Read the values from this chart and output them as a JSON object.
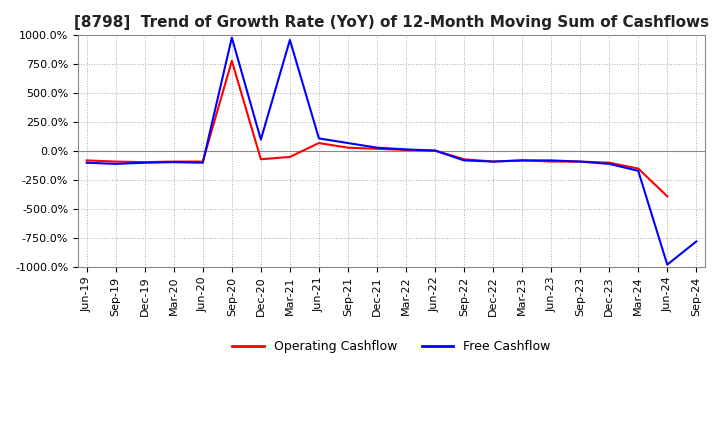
{
  "title": "[8798]  Trend of Growth Rate (YoY) of 12-Month Moving Sum of Cashflows",
  "ylim": [
    -1000,
    1000
  ],
  "yticks": [
    1000.0,
    750.0,
    500.0,
    250.0,
    0.0,
    -250.0,
    -500.0,
    -750.0,
    -1000.0
  ],
  "x_labels": [
    "Jun-19",
    "Sep-19",
    "Dec-19",
    "Mar-20",
    "Jun-20",
    "Sep-20",
    "Dec-20",
    "Mar-21",
    "Jun-21",
    "Sep-21",
    "Dec-21",
    "Mar-22",
    "Jun-22",
    "Sep-22",
    "Dec-22",
    "Mar-23",
    "Jun-23",
    "Sep-23",
    "Dec-23",
    "Mar-24",
    "Jun-24",
    "Sep-24"
  ],
  "operating_cashflow": [
    -80,
    -90,
    -95,
    -90,
    -90,
    780,
    -70,
    -50,
    70,
    30,
    20,
    10,
    5,
    -70,
    -90,
    -80,
    -90,
    -90,
    -100,
    -150,
    -390,
    null
  ],
  "free_cashflow": [
    -100,
    -110,
    -100,
    -95,
    -100,
    980,
    100,
    960,
    110,
    70,
    30,
    15,
    5,
    -80,
    -90,
    -80,
    -80,
    -90,
    -110,
    -170,
    -980,
    -780
  ],
  "op_color": "#ff0000",
  "fc_color": "#0000ff",
  "bg_color": "#ffffff",
  "grid_color": "#aaaaaa",
  "title_color": "#222222",
  "line_width": 1.5,
  "legend_labels": [
    "Operating Cashflow",
    "Free Cashflow"
  ],
  "title_fontsize": 11,
  "tick_fontsize": 8,
  "xlabel_fontsize": 8
}
